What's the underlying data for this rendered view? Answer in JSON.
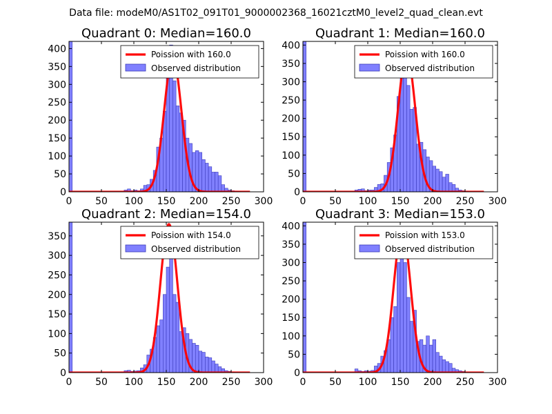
{
  "figure": {
    "suptitle": "Data file: modeM0/AS1T02_091T01_9000002368_16021cztM0_level2_quad_clean.evt"
  },
  "colors": {
    "bar_fill": "#8080ff",
    "bar_edge": "#3a3ab8",
    "poisson_line": "#ff0000",
    "axes": "#000000",
    "legend_edge": "#000000"
  },
  "chart_data": [
    {
      "type": "bar",
      "title": "Quadrant 0: Median=160.0",
      "xlim": [
        0,
        300
      ],
      "ylim": [
        0,
        420
      ],
      "xticks": [
        0,
        50,
        100,
        150,
        200,
        250,
        300
      ],
      "yticks": [
        0,
        50,
        100,
        150,
        200,
        250,
        300,
        350,
        400
      ],
      "bin_width": 5,
      "legend": [
        "Poission with 160.0",
        "Observed distribution"
      ],
      "poisson_mean": 160,
      "poisson_peak": 375,
      "bins": [
        [
          0,
          420
        ],
        [
          85,
          5
        ],
        [
          90,
          8
        ],
        [
          95,
          3
        ],
        [
          100,
          5
        ],
        [
          105,
          3
        ],
        [
          110,
          8
        ],
        [
          115,
          18
        ],
        [
          120,
          20
        ],
        [
          125,
          35
        ],
        [
          130,
          60
        ],
        [
          135,
          125
        ],
        [
          140,
          150
        ],
        [
          145,
          225
        ],
        [
          150,
          390
        ],
        [
          155,
          410
        ],
        [
          160,
          310
        ],
        [
          165,
          240
        ],
        [
          170,
          220
        ],
        [
          175,
          200
        ],
        [
          180,
          150
        ],
        [
          185,
          135
        ],
        [
          190,
          110
        ],
        [
          195,
          115
        ],
        [
          200,
          110
        ],
        [
          205,
          90
        ],
        [
          210,
          80
        ],
        [
          215,
          70
        ],
        [
          220,
          55
        ],
        [
          225,
          55
        ],
        [
          230,
          45
        ],
        [
          235,
          20
        ],
        [
          240,
          10
        ],
        [
          245,
          5
        ],
        [
          250,
          3
        ],
        [
          255,
          2
        ],
        [
          260,
          1
        ]
      ]
    },
    {
      "type": "bar",
      "title": "Quadrant 1: Median=160.0",
      "xlim": [
        0,
        300
      ],
      "ylim": [
        0,
        410
      ],
      "xticks": [
        0,
        50,
        100,
        150,
        200,
        250,
        300
      ],
      "yticks": [
        0,
        50,
        100,
        150,
        200,
        250,
        300,
        350,
        400
      ],
      "bin_width": 5,
      "legend": [
        "Poission with 160.0",
        "Observed distribution"
      ],
      "poisson_mean": 160,
      "poisson_peak": 375,
      "bins": [
        [
          0,
          410
        ],
        [
          80,
          5
        ],
        [
          85,
          7
        ],
        [
          90,
          8
        ],
        [
          95,
          3
        ],
        [
          100,
          5
        ],
        [
          105,
          5
        ],
        [
          110,
          12
        ],
        [
          115,
          20
        ],
        [
          120,
          22
        ],
        [
          125,
          45
        ],
        [
          130,
          80
        ],
        [
          135,
          120
        ],
        [
          140,
          155
        ],
        [
          145,
          260
        ],
        [
          150,
          335
        ],
        [
          155,
          330
        ],
        [
          160,
          290
        ],
        [
          165,
          225
        ],
        [
          170,
          230
        ],
        [
          175,
          130
        ],
        [
          180,
          135
        ],
        [
          185,
          115
        ],
        [
          190,
          95
        ],
        [
          195,
          85
        ],
        [
          200,
          70
        ],
        [
          205,
          62
        ],
        [
          210,
          55
        ],
        [
          215,
          40
        ],
        [
          220,
          48
        ],
        [
          225,
          25
        ],
        [
          230,
          20
        ],
        [
          235,
          10
        ],
        [
          240,
          5
        ],
        [
          245,
          3
        ],
        [
          250,
          2
        ]
      ]
    },
    {
      "type": "bar",
      "title": "Quadrant 2: Median=154.0",
      "xlim": [
        0,
        300
      ],
      "ylim": [
        0,
        385
      ],
      "xticks": [
        0,
        50,
        100,
        150,
        200,
        250,
        300
      ],
      "yticks": [
        0,
        50,
        100,
        150,
        200,
        250,
        300,
        350
      ],
      "bin_width": 5,
      "legend": [
        "Poission with 154.0",
        "Observed distribution"
      ],
      "poisson_mean": 154,
      "poisson_peak": 380,
      "bins": [
        [
          0,
          385
        ],
        [
          80,
          2
        ],
        [
          85,
          5
        ],
        [
          90,
          6
        ],
        [
          95,
          3
        ],
        [
          100,
          4
        ],
        [
          105,
          5
        ],
        [
          110,
          12
        ],
        [
          115,
          20
        ],
        [
          120,
          45
        ],
        [
          125,
          60
        ],
        [
          130,
          90
        ],
        [
          135,
          120
        ],
        [
          140,
          135
        ],
        [
          145,
          200
        ],
        [
          150,
          270
        ],
        [
          155,
          310
        ],
        [
          160,
          200
        ],
        [
          165,
          180
        ],
        [
          170,
          105
        ],
        [
          175,
          115
        ],
        [
          180,
          100
        ],
        [
          185,
          85
        ],
        [
          190,
          75
        ],
        [
          195,
          70
        ],
        [
          200,
          55
        ],
        [
          205,
          52
        ],
        [
          210,
          40
        ],
        [
          215,
          38
        ],
        [
          220,
          30
        ],
        [
          225,
          22
        ],
        [
          230,
          15
        ],
        [
          235,
          10
        ],
        [
          240,
          5
        ],
        [
          245,
          3
        ],
        [
          250,
          2
        ],
        [
          255,
          1
        ]
      ]
    },
    {
      "type": "bar",
      "title": "Quadrant 3: Median=153.0",
      "xlim": [
        0,
        300
      ],
      "ylim": [
        0,
        410
      ],
      "xticks": [
        0,
        50,
        100,
        150,
        200,
        250,
        300
      ],
      "yticks": [
        0,
        50,
        100,
        150,
        200,
        250,
        300,
        350,
        400
      ],
      "bin_width": 5,
      "legend": [
        "Poission with 153.0",
        "Observed distribution"
      ],
      "poisson_mean": 153,
      "poisson_peak": 390,
      "bins": [
        [
          0,
          410
        ],
        [
          80,
          10
        ],
        [
          85,
          5
        ],
        [
          90,
          3
        ],
        [
          95,
          5
        ],
        [
          100,
          4
        ],
        [
          105,
          6
        ],
        [
          110,
          18
        ],
        [
          115,
          25
        ],
        [
          120,
          45
        ],
        [
          125,
          60
        ],
        [
          130,
          90
        ],
        [
          135,
          150
        ],
        [
          140,
          180
        ],
        [
          145,
          300
        ],
        [
          150,
          340
        ],
        [
          155,
          300
        ],
        [
          160,
          205
        ],
        [
          165,
          140
        ],
        [
          170,
          170
        ],
        [
          175,
          85
        ],
        [
          180,
          90
        ],
        [
          185,
          75
        ],
        [
          190,
          100
        ],
        [
          195,
          75
        ],
        [
          200,
          90
        ],
        [
          205,
          55
        ],
        [
          210,
          45
        ],
        [
          215,
          35
        ],
        [
          220,
          30
        ],
        [
          225,
          25
        ],
        [
          230,
          12
        ],
        [
          235,
          8
        ],
        [
          240,
          5
        ],
        [
          245,
          3
        ]
      ]
    }
  ]
}
